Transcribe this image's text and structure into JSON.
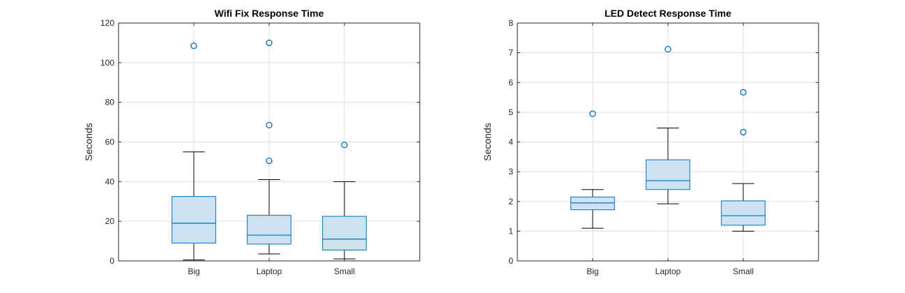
{
  "chart_data": [
    {
      "type": "box",
      "title": "Wifi Fix Response Time",
      "ylabel": "Seconds",
      "xlabel": "",
      "categories": [
        "Big",
        "Laptop",
        "Small"
      ],
      "ylim": [
        0,
        120
      ],
      "yticks": [
        0,
        20,
        40,
        60,
        80,
        100,
        120
      ],
      "grid": true,
      "boxes": [
        {
          "category": "Big",
          "q1": 9,
          "median": 19,
          "q3": 32.5,
          "whisker_low": 0.5,
          "whisker_high": 55,
          "outliers": [
            108.5
          ]
        },
        {
          "category": "Laptop",
          "q1": 8.5,
          "median": 13,
          "q3": 23,
          "whisker_low": 3.5,
          "whisker_high": 41,
          "outliers": [
            50.5,
            68.5,
            110
          ]
        },
        {
          "category": "Small",
          "q1": 5.5,
          "median": 11,
          "q3": 22.5,
          "whisker_low": 1,
          "whisker_high": 40,
          "outliers": [
            58.5
          ]
        }
      ]
    },
    {
      "type": "box",
      "title": "LED Detect Response Time",
      "ylabel": "Seconds",
      "xlabel": "",
      "categories": [
        "Big",
        "Laptop",
        "Small"
      ],
      "ylim": [
        0,
        8
      ],
      "yticks": [
        0,
        1,
        2,
        3,
        4,
        5,
        6,
        7,
        8
      ],
      "grid": true,
      "boxes": [
        {
          "category": "Big",
          "q1": 1.72,
          "median": 1.95,
          "q3": 2.15,
          "whisker_low": 1.1,
          "whisker_high": 2.4,
          "outliers": [
            4.95
          ]
        },
        {
          "category": "Laptop",
          "q1": 2.4,
          "median": 2.7,
          "q3": 3.4,
          "whisker_low": 1.92,
          "whisker_high": 4.47,
          "outliers": [
            7.12
          ]
        },
        {
          "category": "Small",
          "q1": 1.2,
          "median": 1.52,
          "q3": 2.02,
          "whisker_low": 1.0,
          "whisker_high": 2.6,
          "outliers": [
            4.33,
            5.67
          ]
        }
      ]
    }
  ],
  "colors": {
    "box_edge": "#0072BD",
    "box_fill": "#cde2f2",
    "whisker": "#000000",
    "grid": "#dfdfdf",
    "axis": "#262626"
  }
}
